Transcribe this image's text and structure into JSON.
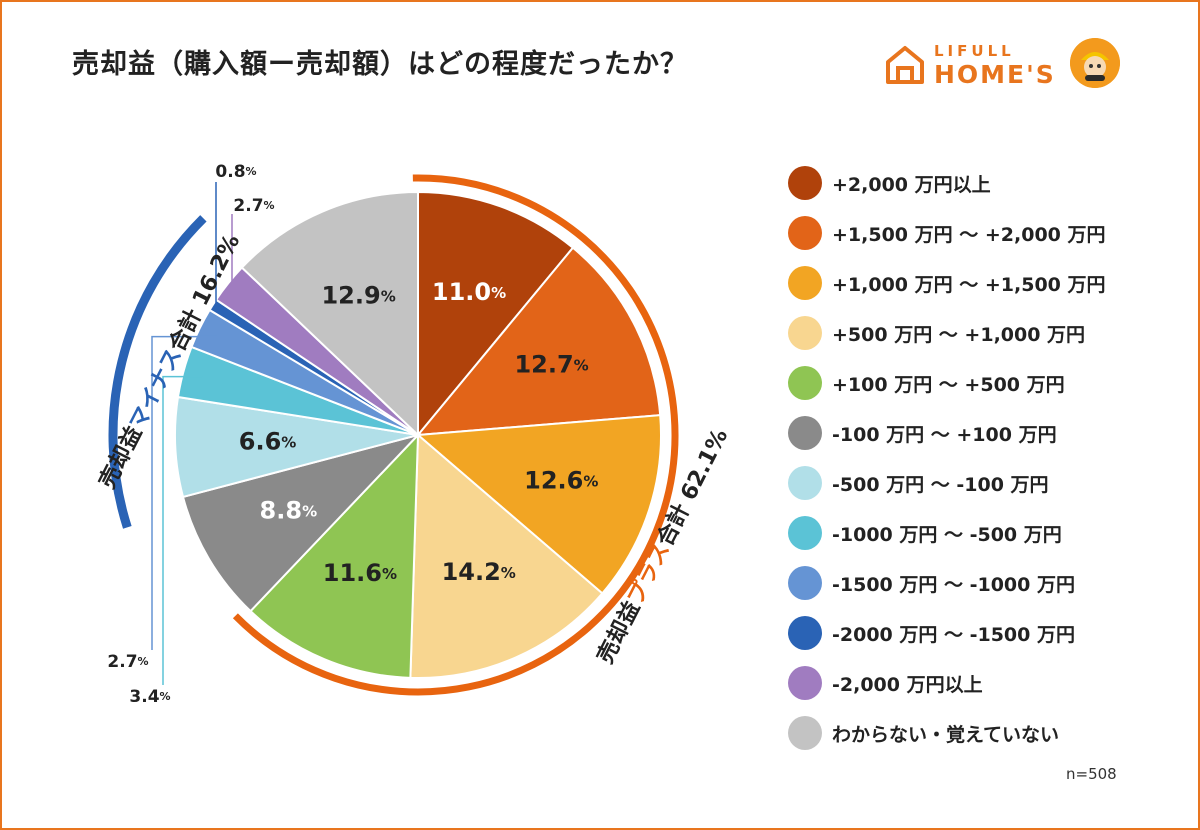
{
  "title": "売却益（購入額ー売却額）はどの程度だったか？",
  "logo": {
    "brand_top": "LIFULL",
    "brand_main": "HOME'S"
  },
  "sample_note": "n=508",
  "group_labels": {
    "plus": {
      "prefix": "売却益",
      "accent": "プラス",
      "suffix": "合計 62.1%"
    },
    "minus": {
      "prefix": "売却益",
      "accent": "マイナス",
      "suffix": "合計 16.2%"
    }
  },
  "colors": {
    "frame": "#e8751e",
    "plus_arc": "#e8640f",
    "minus_arc": "#2a63b5"
  },
  "chart_data": {
    "type": "pie",
    "unit": "%",
    "slices": [
      {
        "label": "+2,000 万円以上",
        "value": 11.0,
        "display": "11.0",
        "color": "#b0420b",
        "text_color": "#ffffff"
      },
      {
        "label": "+1,500 万円 〜 +2,000 万円",
        "value": 12.7,
        "display": "12.7",
        "color": "#e26418",
        "text_color": "#222222"
      },
      {
        "label": "+1,000 万円 〜 +1,500 万円",
        "value": 12.6,
        "display": "12.6",
        "color": "#f2a523",
        "text_color": "#222222"
      },
      {
        "label": "+500 万円 〜 +1,000 万円",
        "value": 14.2,
        "display": "14.2",
        "color": "#f8d690",
        "text_color": "#222222"
      },
      {
        "label": "+100 万円 〜 +500 万円",
        "value": 11.6,
        "display": "11.6",
        "color": "#8fc553",
        "text_color": "#222222"
      },
      {
        "label": "-100 万円 〜 +100 万円",
        "value": 8.8,
        "display": "8.8",
        "color": "#8a8a8a",
        "text_color": "#ffffff"
      },
      {
        "label": "-500 万円 〜 -100 万円",
        "value": 6.6,
        "display": "6.6",
        "color": "#b1dfe8",
        "text_color": "#222222"
      },
      {
        "label": "-1000 万円 〜 -500 万円",
        "value": 3.4,
        "display": "3.4",
        "color": "#5bc3d6",
        "text_color": "#222222"
      },
      {
        "label": "-1500 万円 〜 -1000 万円",
        "value": 2.7,
        "display": "2.7",
        "color": "#6594d4",
        "text_color": "#222222"
      },
      {
        "label": "-2000 万円 〜 -1500 万円",
        "value": 0.8,
        "display": "0.8",
        "color": "#2a63b5",
        "text_color": "#222222"
      },
      {
        "label": "-2,000 万円以上",
        "value": 2.7,
        "display": "2.7",
        "color": "#a07cc0",
        "text_color": "#222222"
      },
      {
        "label": "わからない・覚えていない",
        "value": 12.9,
        "display": "12.9",
        "color": "#c3c3c3",
        "text_color": "#222222"
      }
    ]
  }
}
